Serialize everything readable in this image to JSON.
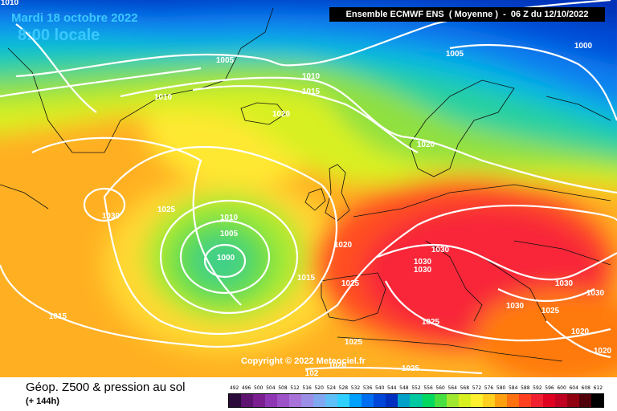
{
  "header": {
    "date": "Mardi 18 octobre 2022",
    "time": "8:00 locale",
    "ensemble": "Ensemble ECMWF ENS  ( Moyenne )  -  06 Z du 12/10/2022"
  },
  "copyright": "Copyright © 2022 Meteociel.fr",
  "footer": {
    "parameter": "Géop. Z500 & pression au sol",
    "lead": "(+ 144h)"
  },
  "scale": {
    "ticks": [
      "492",
      "496",
      "500",
      "504",
      "508",
      "512",
      "516",
      "520",
      "524",
      "528",
      "532",
      "536",
      "540",
      "544",
      "548",
      "552",
      "556",
      "560",
      "564",
      "568",
      "572",
      "576",
      "580",
      "584",
      "588",
      "592",
      "596",
      "600",
      "604",
      "608",
      "612"
    ],
    "colors": [
      "#2a0a3a",
      "#5c1470",
      "#7a1e90",
      "#8e36b4",
      "#9e52c8",
      "#a972d8",
      "#9a8ee6",
      "#7fa8f0",
      "#5fc0f8",
      "#2fd0ff",
      "#00a0ff",
      "#006ef0",
      "#0046d8",
      "#0030c0",
      "#00a0c8",
      "#00c8a0",
      "#00d860",
      "#48e040",
      "#a0e830",
      "#d8f020",
      "#fff030",
      "#ffd020",
      "#ffa010",
      "#ff7010",
      "#ff4020",
      "#f02030",
      "#e00020",
      "#c00020",
      "#900010",
      "#500008",
      "#000000"
    ]
  },
  "pressure_labels": [
    "1010",
    "1005",
    "1005",
    "1000",
    "1010",
    "1010",
    "1015",
    "1020",
    "1020",
    "1030",
    "1025",
    "1010",
    "1005",
    "1000",
    "1015",
    "1020",
    "1030",
    "1030",
    "1030",
    "1025",
    "1030",
    "1030",
    "1025",
    "1020",
    "1020",
    "1015",
    "1025",
    "1025",
    "1025",
    "1030",
    "1020",
    "102"
  ]
}
